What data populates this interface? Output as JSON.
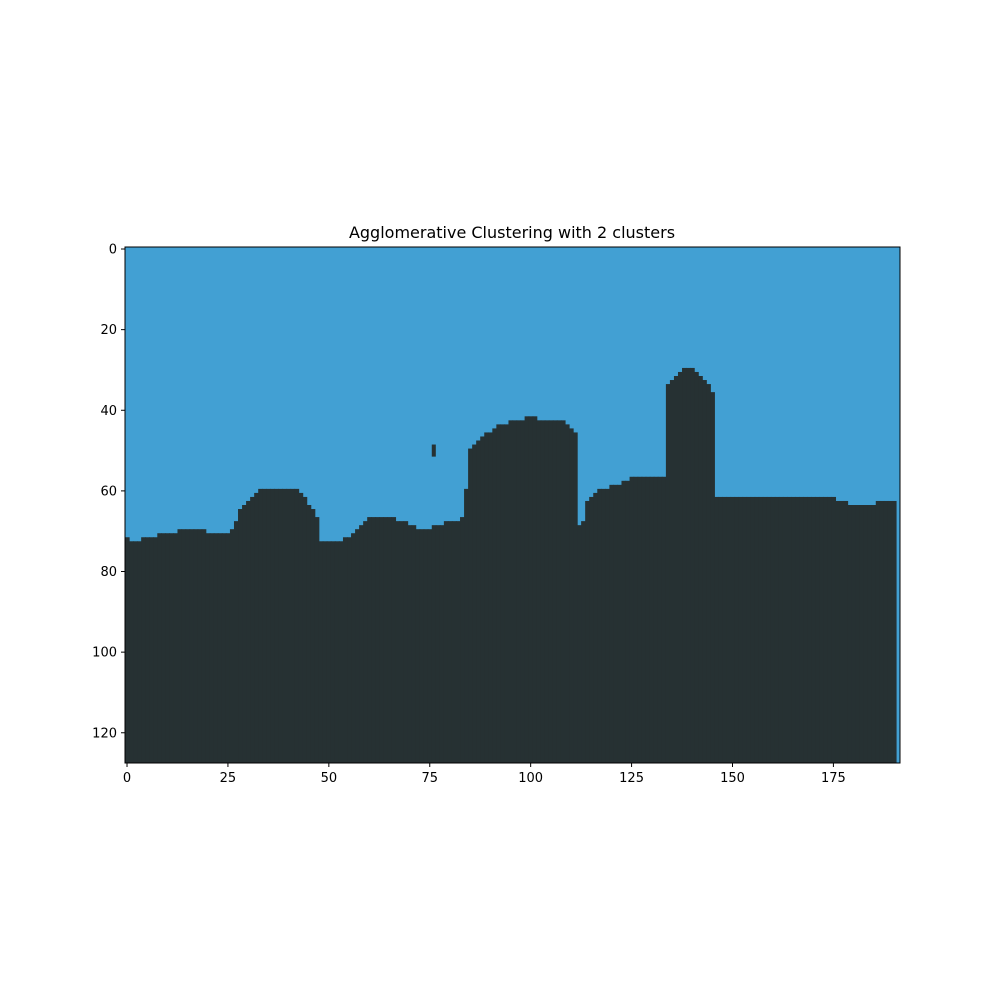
{
  "chart_data": {
    "type": "heatmap",
    "title": "Agglomerative Clustering with 2 clusters",
    "xlabel": "",
    "ylabel": "",
    "width": 192,
    "height": 128,
    "xlim": [
      -0.5,
      191.5
    ],
    "ylim": [
      127.5,
      -0.5
    ],
    "x_ticks": [
      0,
      25,
      50,
      75,
      100,
      125,
      150,
      175
    ],
    "y_ticks": [
      0,
      20,
      40,
      60,
      80,
      100,
      120
    ],
    "grid": false,
    "colors": {
      "cluster_sky": "#42a0d3",
      "cluster_ground": "#263133"
    },
    "boundary_note_points": [
      [
        0,
        72
      ],
      [
        2,
        73
      ],
      [
        5,
        72
      ],
      [
        10,
        71
      ],
      [
        16,
        70
      ],
      [
        25,
        71
      ],
      [
        27,
        70
      ],
      [
        28,
        66
      ],
      [
        29,
        64
      ],
      [
        31,
        63
      ],
      [
        32,
        61
      ],
      [
        34,
        60
      ],
      [
        42,
        60
      ],
      [
        44,
        61
      ],
      [
        45,
        63
      ],
      [
        47,
        65
      ],
      [
        48,
        68
      ],
      [
        46,
        69
      ],
      [
        45,
        73
      ],
      [
        52,
        73
      ],
      [
        56,
        72
      ],
      [
        58,
        69
      ],
      [
        60,
        67
      ],
      [
        66,
        67
      ],
      [
        69,
        68
      ],
      [
        71,
        69
      ],
      [
        74,
        70
      ],
      [
        77,
        69
      ],
      [
        80,
        68
      ],
      [
        83,
        68
      ],
      [
        84,
        66
      ],
      [
        84,
        60
      ],
      [
        85,
        59
      ],
      [
        85,
        51
      ],
      [
        87,
        48
      ],
      [
        90,
        46
      ],
      [
        93,
        44
      ],
      [
        97,
        43
      ],
      [
        100,
        42
      ],
      [
        104,
        43
      ],
      [
        108,
        43
      ],
      [
        111,
        45
      ],
      [
        112,
        47
      ],
      [
        108,
        48
      ],
      [
        104,
        50
      ],
      [
        104,
        53
      ],
      [
        102,
        54
      ],
      [
        103,
        57
      ],
      [
        104,
        59
      ],
      [
        106,
        60
      ],
      [
        108,
        61
      ],
      [
        108,
        64
      ],
      [
        109,
        67
      ],
      [
        111,
        69
      ],
      [
        114,
        68
      ],
      [
        116,
        66
      ],
      [
        114,
        64
      ],
      [
        116,
        61
      ],
      [
        118,
        60
      ],
      [
        122,
        59
      ],
      [
        124,
        58
      ],
      [
        126,
        57
      ],
      [
        133,
        57
      ],
      [
        134,
        56
      ],
      [
        135,
        39
      ],
      [
        134,
        35
      ],
      [
        136,
        32
      ],
      [
        138,
        30
      ],
      [
        141,
        30
      ],
      [
        143,
        33
      ],
      [
        145,
        34
      ],
      [
        146,
        37
      ],
      [
        143,
        40
      ],
      [
        142,
        41
      ],
      [
        142,
        60
      ],
      [
        144,
        61
      ],
      [
        149,
        62
      ],
      [
        160,
        62
      ],
      [
        175,
        62
      ],
      [
        177,
        63
      ],
      [
        181,
        64
      ],
      [
        185,
        64
      ],
      [
        186,
        63
      ],
      [
        191,
        63
      ]
    ],
    "blobs": [
      {
        "x": [
          76,
          77
        ],
        "y": [
          49,
          51
        ]
      }
    ]
  }
}
